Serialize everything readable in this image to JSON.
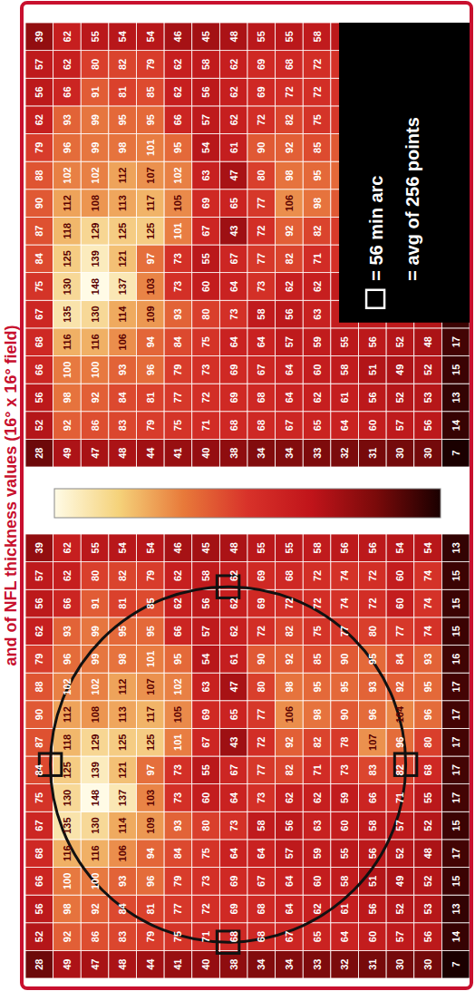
{
  "chart_data": {
    "type": "heatmap",
    "title": "and of NFL thickness values (16° x 16° field)",
    "cells": [
      [
        28,
        52,
        56,
        66,
        68,
        67,
        75,
        84,
        87,
        90,
        88,
        79,
        62,
        56,
        57,
        39
      ],
      [
        49,
        92,
        98,
        100,
        116,
        135,
        130,
        125,
        118,
        112,
        102,
        96,
        93,
        66,
        62,
        62
      ],
      [
        47,
        86,
        92,
        100,
        116,
        130,
        148,
        139,
        129,
        108,
        102,
        99,
        99,
        91,
        80,
        55
      ],
      [
        48,
        83,
        84,
        93,
        106,
        114,
        137,
        121,
        125,
        113,
        112,
        98,
        95,
        81,
        82,
        54
      ],
      [
        44,
        79,
        81,
        96,
        94,
        109,
        103,
        97,
        125,
        117,
        107,
        101,
        95,
        85,
        79,
        54
      ],
      [
        41,
        75,
        77,
        79,
        84,
        93,
        73,
        73,
        101,
        105,
        102,
        95,
        66,
        62,
        62,
        46
      ],
      [
        40,
        71,
        72,
        73,
        75,
        80,
        60,
        55,
        67,
        69,
        63,
        54,
        57,
        56,
        58,
        45
      ],
      [
        38,
        68,
        69,
        69,
        64,
        73,
        64,
        67,
        43,
        65,
        47,
        61,
        62,
        62,
        62,
        48
      ],
      [
        34,
        68,
        68,
        67,
        64,
        58,
        73,
        77,
        72,
        77,
        80,
        90,
        72,
        69,
        69,
        55
      ],
      [
        34,
        67,
        64,
        64,
        57,
        56,
        62,
        82,
        92,
        106,
        98,
        92,
        82,
        72,
        68,
        55
      ],
      [
        33,
        65,
        62,
        60,
        59,
        63,
        62,
        71,
        82,
        98,
        95,
        85,
        75,
        72,
        72,
        58
      ],
      [
        32,
        64,
        61,
        58,
        55,
        60,
        59,
        73,
        78,
        90,
        95,
        90,
        77,
        74,
        74,
        56
      ],
      [
        31,
        60,
        56,
        51,
        56,
        58,
        66,
        83,
        107,
        96,
        93,
        95,
        80,
        72,
        72,
        56
      ],
      [
        30,
        57,
        52,
        49,
        52,
        57,
        71,
        82,
        96,
        104,
        92,
        84,
        77,
        60,
        60,
        54
      ],
      [
        30,
        56,
        53,
        52,
        48,
        52,
        55,
        68,
        80,
        96,
        95,
        93,
        74,
        74,
        74,
        54
      ],
      [
        7,
        14,
        13,
        15,
        17,
        15,
        17,
        17,
        17,
        17,
        17,
        16,
        15,
        15,
        15,
        13
      ]
    ],
    "annotations": [
      "= 56 min arc",
      "= avg of 256 points"
    ]
  }
}
